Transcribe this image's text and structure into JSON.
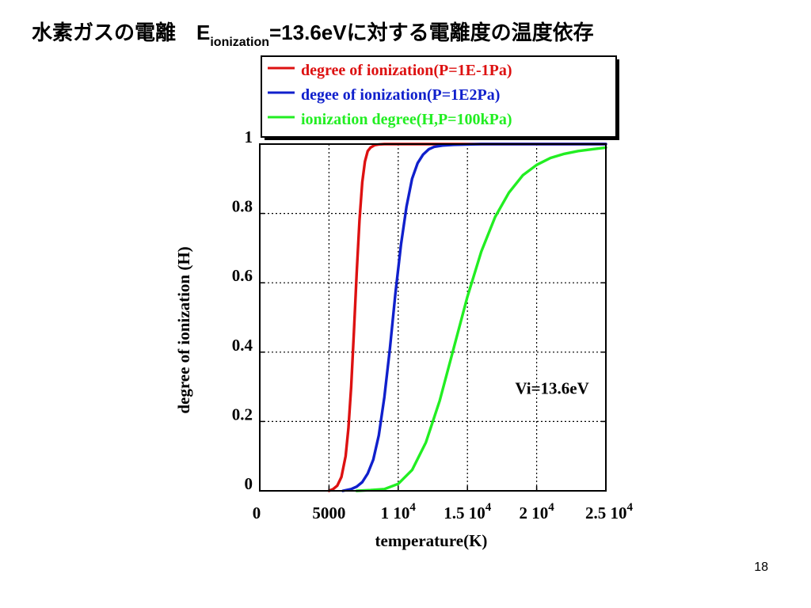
{
  "slide": {
    "title_prefix": "水素ガスの電離　E",
    "title_subscript": "ionization",
    "title_suffix": "=13.6eVに対する電離度の温度依存",
    "page_number": "18"
  },
  "chart_data": {
    "type": "line",
    "title": "",
    "xlabel": "temperature(K)",
    "ylabel": "degree of ionization (H)",
    "xlim": [
      0,
      25000
    ],
    "ylim": [
      0,
      1
    ],
    "grid": true,
    "grid_style": "dotted",
    "legend_position": "top-center",
    "annotation": "Vi=13.6eV",
    "xticks": [
      {
        "value": 0,
        "label": "0",
        "exp": ""
      },
      {
        "value": 5000,
        "label": "5000",
        "exp": ""
      },
      {
        "value": 10000,
        "label": "1 10",
        "exp": "4"
      },
      {
        "value": 15000,
        "label": "1.5 10",
        "exp": "4"
      },
      {
        "value": 20000,
        "label": "2 10",
        "exp": "4"
      },
      {
        "value": 25000,
        "label": "2.5 10",
        "exp": "4"
      }
    ],
    "yticks": [
      {
        "value": 0,
        "label": "0"
      },
      {
        "value": 0.2,
        "label": "0.2"
      },
      {
        "value": 0.4,
        "label": "0.4"
      },
      {
        "value": 0.6,
        "label": "0.6"
      },
      {
        "value": 0.8,
        "label": "0.8"
      },
      {
        "value": 1,
        "label": "1"
      }
    ],
    "series": [
      {
        "name": "degree of ionization(P=1E-1Pa)",
        "color": "#dd1111",
        "x": [
          5000,
          5300,
          5600,
          5900,
          6200,
          6400,
          6600,
          6800,
          7000,
          7200,
          7400,
          7600,
          7800,
          8000,
          8300,
          8600,
          9000,
          10000,
          12000,
          15000,
          20000,
          25000
        ],
        "y": [
          0,
          0.005,
          0.015,
          0.04,
          0.1,
          0.18,
          0.3,
          0.46,
          0.63,
          0.78,
          0.89,
          0.95,
          0.98,
          0.99,
          0.997,
          0.999,
          1,
          1,
          1,
          1,
          1,
          1
        ]
      },
      {
        "name": "degee of ionization(P=1E2Pa)",
        "color": "#1020cc",
        "x": [
          6000,
          6600,
          7000,
          7400,
          7800,
          8200,
          8600,
          9000,
          9400,
          9800,
          10200,
          10600,
          11000,
          11400,
          11800,
          12200,
          12600,
          13200,
          14000,
          16000,
          20000,
          25000
        ],
        "y": [
          0,
          0.005,
          0.012,
          0.025,
          0.05,
          0.09,
          0.16,
          0.27,
          0.41,
          0.57,
          0.71,
          0.82,
          0.9,
          0.945,
          0.97,
          0.985,
          0.992,
          0.996,
          0.998,
          1,
          1,
          1
        ]
      },
      {
        "name": "ionization degree(H,P=100kPa)",
        "color": "#22ee22",
        "x": [
          7000,
          8000,
          9000,
          10000,
          11000,
          12000,
          13000,
          14000,
          15000,
          16000,
          17000,
          18000,
          19000,
          20000,
          21000,
          22000,
          23000,
          24000,
          25000
        ],
        "y": [
          0,
          0.002,
          0.005,
          0.02,
          0.06,
          0.14,
          0.26,
          0.41,
          0.56,
          0.69,
          0.79,
          0.86,
          0.91,
          0.94,
          0.96,
          0.972,
          0.98,
          0.985,
          0.99
        ]
      }
    ]
  }
}
